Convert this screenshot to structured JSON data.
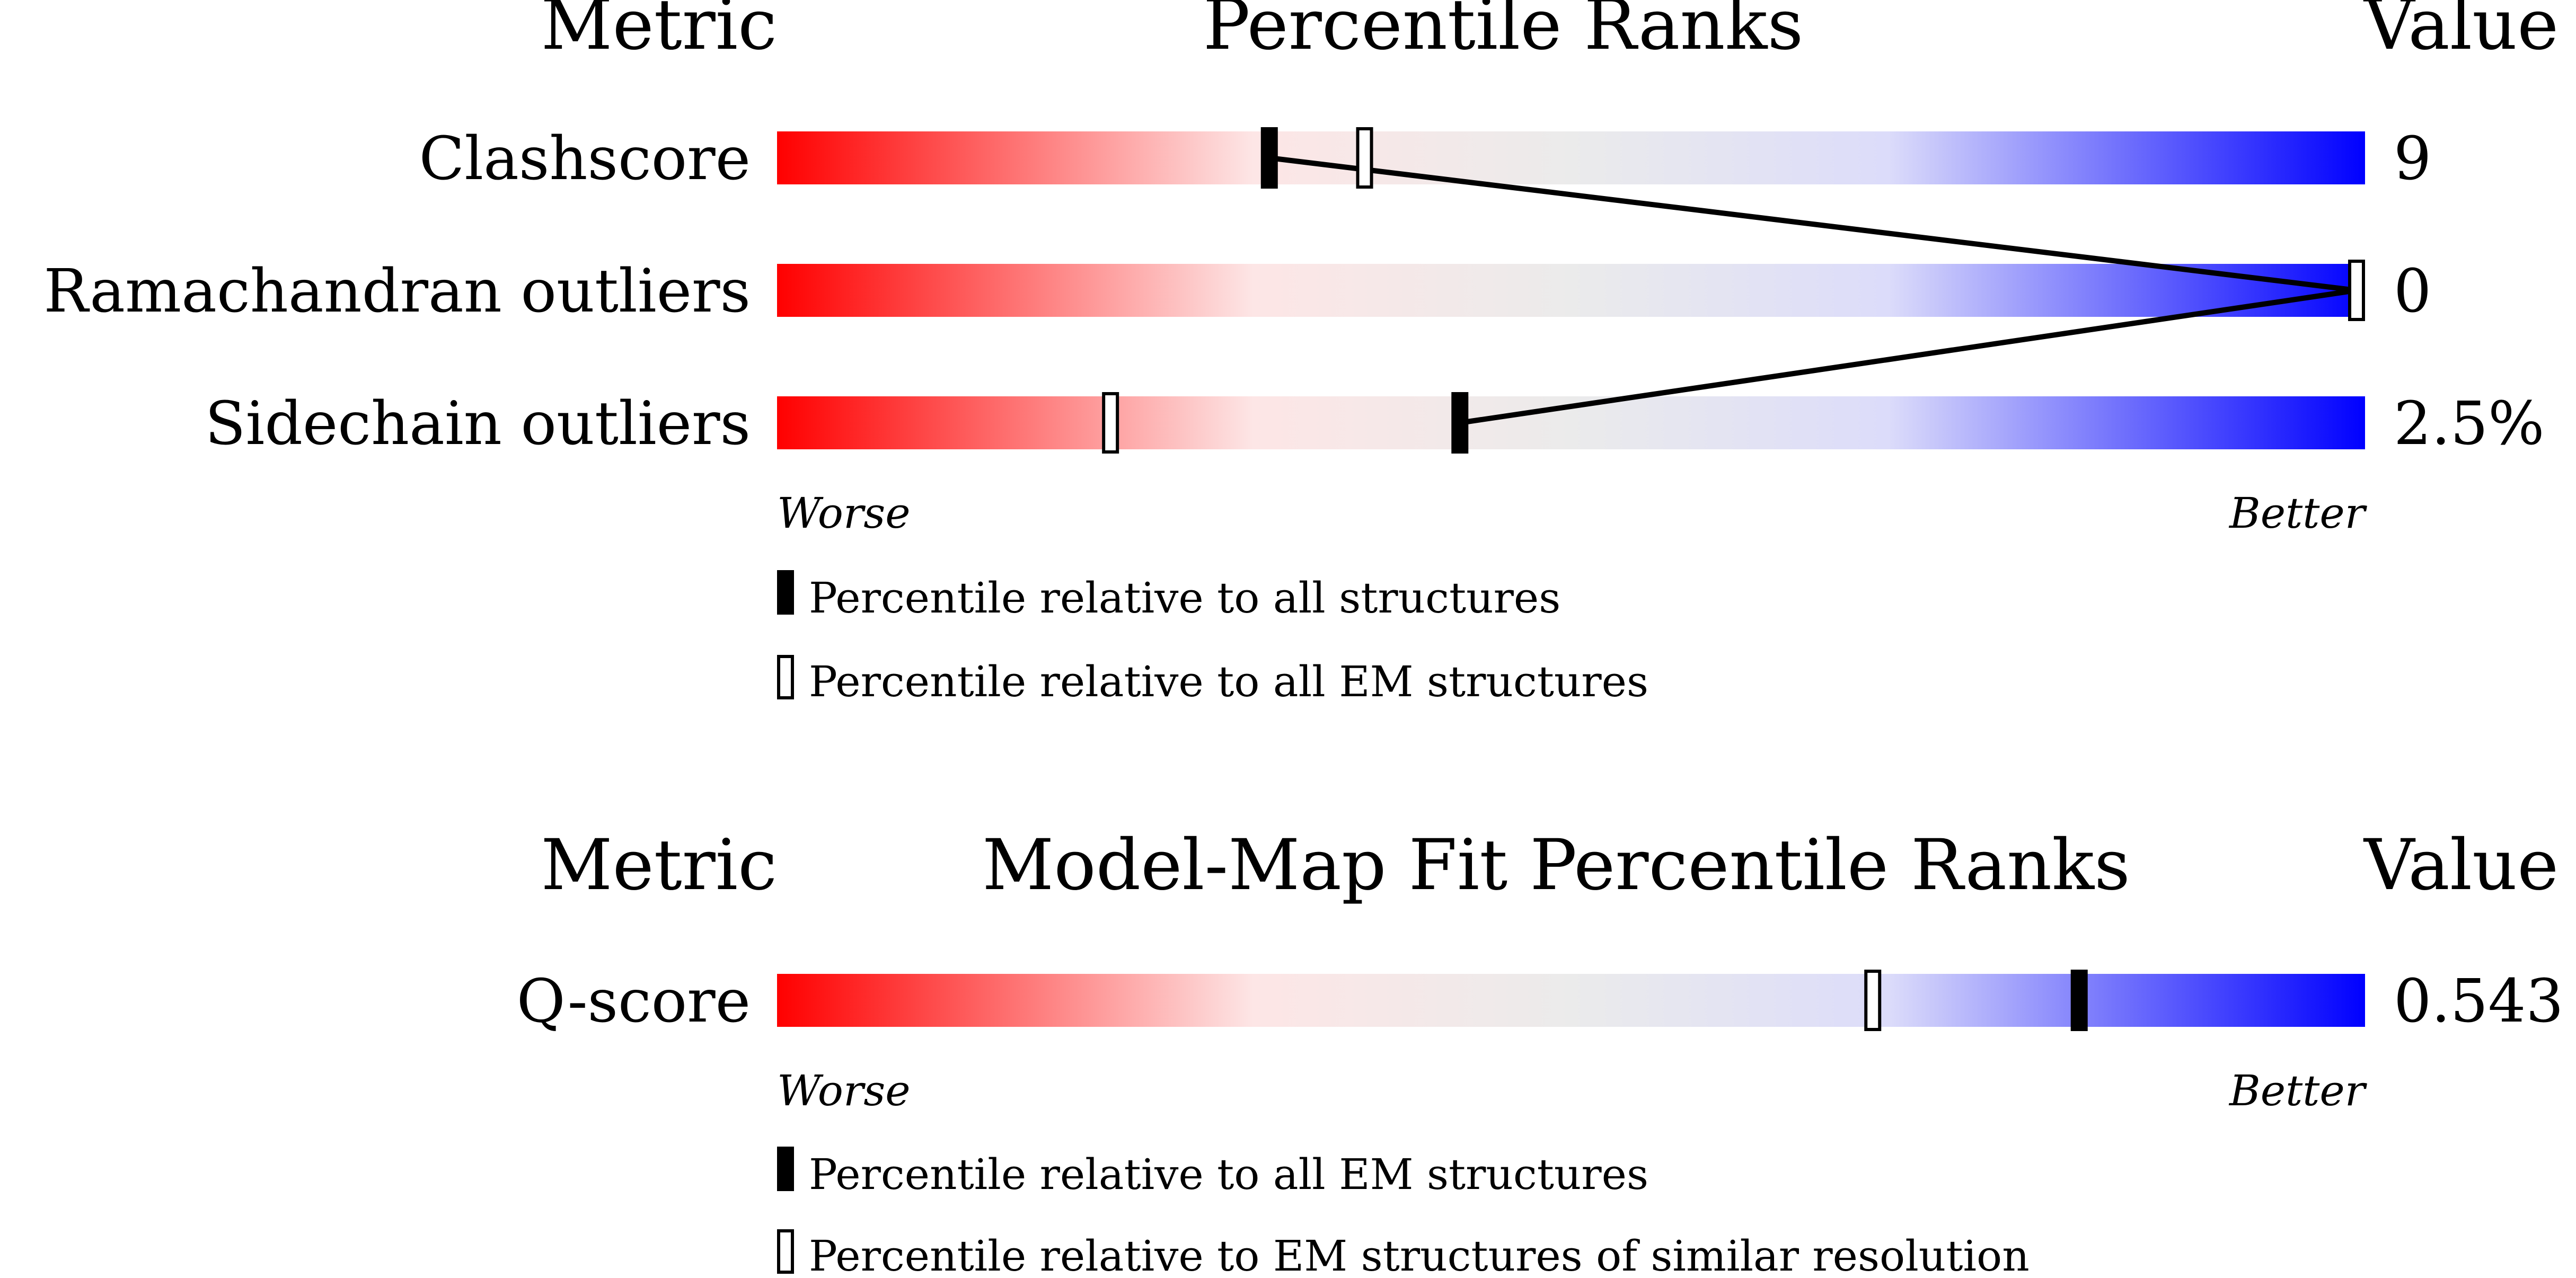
{
  "colors": {
    "gradient": [
      "#ff0000",
      "#fde6e6",
      "#ebebeb",
      "#dcdcfa",
      "#0000ff"
    ],
    "marker": "#000000",
    "background": "#ffffff"
  },
  "chart_data": [
    {
      "type": "bar",
      "headers": {
        "metric": "Metric",
        "title": "Percentile Ranks",
        "value": "Value"
      },
      "scale": {
        "min": 0,
        "max": 100,
        "low_label": "Worse",
        "high_label": "Better"
      },
      "rows": [
        {
          "metric": "Clashscore",
          "value": "9",
          "percentile_all": 31,
          "percentile_em": 37
        },
        {
          "metric": "Ramachandran outliers",
          "value": "0",
          "percentile_all": 100,
          "percentile_em": 100
        },
        {
          "metric": "Sidechain outliers",
          "value": "2.5%",
          "percentile_all": 43,
          "percentile_em": 21
        }
      ],
      "legend": [
        {
          "marker": "filled",
          "label": "Percentile relative to all structures"
        },
        {
          "marker": "outline",
          "label": "Percentile relative to all EM structures"
        }
      ]
    },
    {
      "type": "bar",
      "headers": {
        "metric": "Metric",
        "title": "Model-Map Fit Percentile Ranks",
        "value": "Value"
      },
      "scale": {
        "min": 0,
        "max": 100,
        "low_label": "Worse",
        "high_label": "Better"
      },
      "rows": [
        {
          "metric": "Q-score",
          "value": "0.543",
          "percentile_all": 82,
          "percentile_em": 69
        }
      ],
      "legend": [
        {
          "marker": "filled",
          "label": "Percentile relative to all EM structures"
        },
        {
          "marker": "outline",
          "label": "Percentile relative to EM structures of similar resolution"
        }
      ]
    }
  ]
}
